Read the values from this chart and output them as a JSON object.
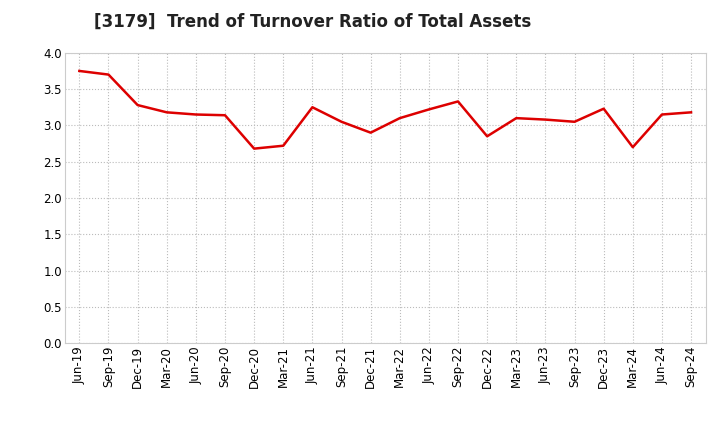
{
  "title": "[3179]  Trend of Turnover Ratio of Total Assets",
  "labels": [
    "Jun-19",
    "Sep-19",
    "Dec-19",
    "Mar-20",
    "Jun-20",
    "Sep-20",
    "Dec-20",
    "Mar-21",
    "Jun-21",
    "Sep-21",
    "Dec-21",
    "Mar-22",
    "Jun-22",
    "Sep-22",
    "Dec-22",
    "Mar-23",
    "Jun-23",
    "Sep-23",
    "Dec-23",
    "Mar-24",
    "Jun-24",
    "Sep-24"
  ],
  "values": [
    3.75,
    3.7,
    3.28,
    3.18,
    3.15,
    3.14,
    2.68,
    2.72,
    3.25,
    3.05,
    2.9,
    3.1,
    3.22,
    3.33,
    2.85,
    3.1,
    3.08,
    3.05,
    3.23,
    2.7,
    3.15,
    3.18
  ],
  "line_color": "#dd0000",
  "line_width": 1.8,
  "ylim": [
    0.0,
    4.0
  ],
  "yticks": [
    0.0,
    0.5,
    1.0,
    1.5,
    2.0,
    2.5,
    3.0,
    3.5,
    4.0
  ],
  "grid_color": "#bbbbbb",
  "grid_style": "dotted",
  "bg_color": "#ffffff",
  "title_fontsize": 12,
  "tick_fontsize": 8.5
}
